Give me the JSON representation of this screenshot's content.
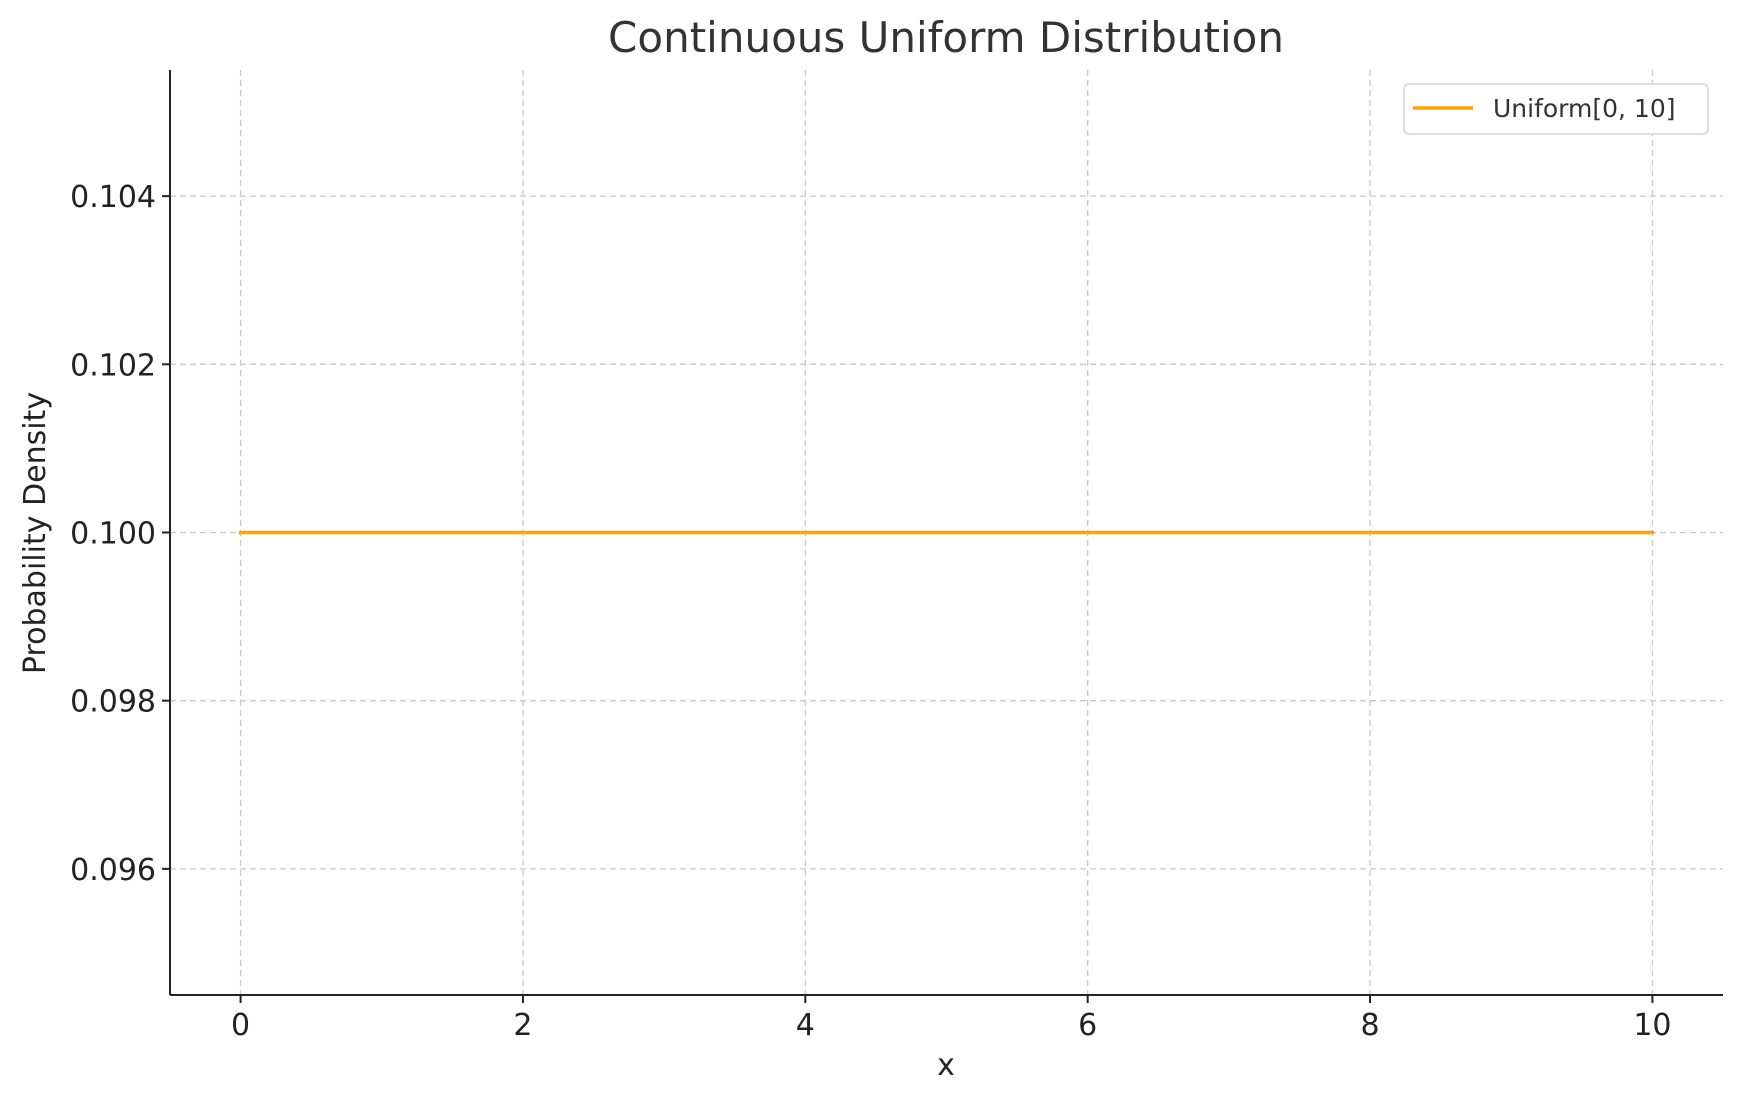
{
  "chart_data": {
    "type": "line",
    "title": "Continuous Uniform Distribution",
    "xlabel": "x",
    "ylabel": "Probability Density",
    "xlim": [
      -0.5,
      10.5
    ],
    "ylim": [
      0.0945,
      0.1055
    ],
    "x_ticks": [
      0,
      2,
      4,
      6,
      8,
      10
    ],
    "x_tick_labels": [
      "0",
      "2",
      "4",
      "6",
      "8",
      "10"
    ],
    "y_ticks": [
      0.096,
      0.098,
      0.1,
      0.102,
      0.104
    ],
    "y_tick_labels": [
      "0.096",
      "0.098",
      "0.100",
      "0.102",
      "0.104"
    ],
    "grid": true,
    "legend_position": "top-right",
    "series": [
      {
        "name": "Uniform[0, 10]",
        "color": "#FFA500",
        "x": [
          0,
          10
        ],
        "y": [
          0.1,
          0.1
        ]
      }
    ]
  }
}
